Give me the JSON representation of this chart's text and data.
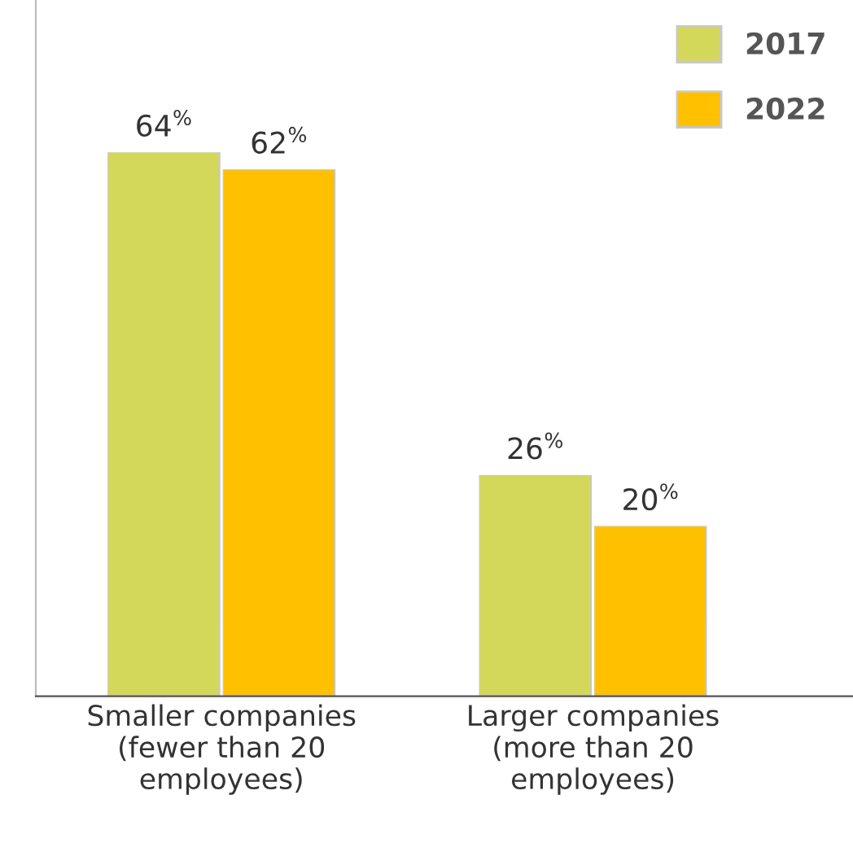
{
  "chart_data": {
    "type": "bar",
    "categories": [
      "Smaller companies\n(fewer than 20\nemployees)",
      "Larger companies\n(more than 20\nemployees)"
    ],
    "series": [
      {
        "name": "2017",
        "color": "#d4d85a",
        "values": [
          64,
          26
        ],
        "value_labels": [
          "64$^{%}$",
          "26$^{%}$"
        ]
      },
      {
        "name": "2022",
        "color": "#ffc000",
        "values": [
          62,
          20
        ],
        "value_labels": [
          "62$^{%}$",
          "20$^{%}$"
        ]
      }
    ],
    "ylim": [
      0,
      82
    ],
    "tick_labels": "x",
    "grid": false,
    "legend": "top right"
  }
}
